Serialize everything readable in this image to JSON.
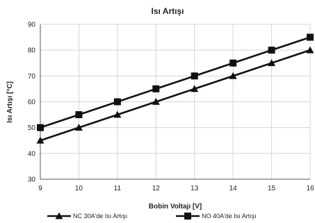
{
  "chart_data": {
    "type": "line",
    "title": "Isı Artışı",
    "xlabel": "Bobin Voltajı [V]",
    "ylabel": "Isı Artışı [°C]",
    "x": [
      9,
      10,
      11,
      12,
      13,
      14,
      15,
      16
    ],
    "xlim": [
      9,
      16
    ],
    "ylim": [
      30,
      90
    ],
    "yticks": [
      30,
      40,
      50,
      60,
      70,
      80,
      90
    ],
    "grid": true,
    "legend_position": "bottom",
    "series": [
      {
        "name": "NC 30A'de Isı Artışı",
        "marker": "triangle",
        "color": "#111111",
        "values": [
          45,
          50,
          55,
          60,
          65,
          70,
          75,
          80
        ]
      },
      {
        "name": "NO 40A'de Isı Artışı",
        "marker": "square",
        "color": "#111111",
        "values": [
          50,
          55,
          60,
          65,
          70,
          75,
          80,
          85
        ]
      }
    ]
  }
}
